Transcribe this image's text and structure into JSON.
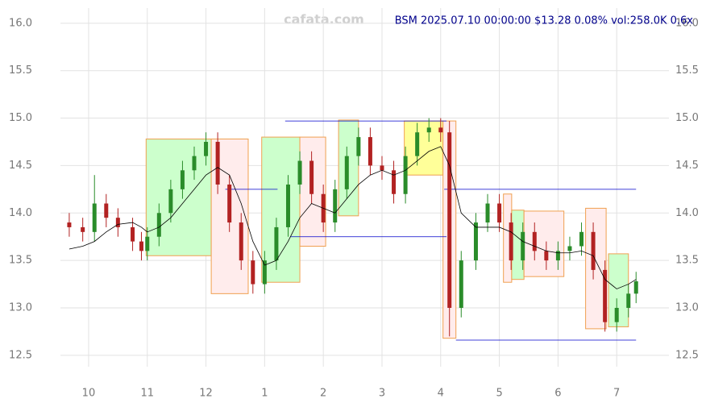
{
  "chart_data": {
    "type": "candlestick",
    "title": "BSM 2025.07.10 00:00:00 $13.28 0.08% vol:258.0K 0.6x",
    "watermark": "cafata.com",
    "x": [
      9.67,
      9.9,
      10.1,
      10.3,
      10.5,
      10.75,
      10.9,
      11.0,
      11.2,
      11.4,
      11.6,
      11.8,
      12.0,
      12.2,
      12.4,
      12.6,
      12.8,
      13.0,
      13.2,
      13.4,
      13.6,
      13.8,
      14.0,
      14.2,
      14.4,
      14.6,
      14.8,
      15.0,
      15.2,
      15.4,
      15.6,
      15.8,
      16.0,
      16.15,
      16.35,
      16.6,
      16.8,
      17.0,
      17.2,
      17.4,
      17.6,
      17.8,
      18.0,
      18.2,
      18.4,
      18.6,
      18.8,
      19.0,
      19.2,
      19.33
    ],
    "open": [
      13.9,
      13.85,
      13.8,
      14.1,
      13.95,
      13.85,
      13.7,
      13.6,
      13.75,
      14.0,
      14.25,
      14.45,
      14.6,
      14.75,
      14.3,
      13.9,
      13.5,
      13.25,
      13.5,
      13.85,
      14.3,
      14.55,
      14.2,
      13.9,
      14.25,
      14.6,
      14.8,
      14.5,
      14.45,
      14.2,
      14.6,
      14.85,
      14.9,
      14.85,
      13.0,
      13.5,
      13.9,
      14.1,
      13.9,
      13.5,
      13.8,
      13.6,
      13.5,
      13.6,
      13.65,
      13.8,
      13.4,
      12.85,
      13.0,
      13.15
    ],
    "high": [
      14.0,
      13.95,
      14.4,
      14.2,
      14.05,
      13.95,
      13.8,
      13.85,
      14.1,
      14.35,
      14.55,
      14.7,
      14.85,
      14.85,
      14.4,
      14.0,
      13.6,
      13.6,
      13.95,
      14.4,
      14.65,
      14.65,
      14.3,
      14.35,
      14.7,
      14.9,
      14.9,
      14.6,
      14.55,
      14.7,
      14.95,
      15.0,
      15.0,
      14.97,
      13.6,
      14.0,
      14.2,
      14.2,
      14.0,
      13.9,
      13.9,
      13.7,
      13.7,
      13.75,
      13.9,
      13.9,
      13.5,
      13.1,
      13.25,
      13.38
    ],
    "low": [
      13.75,
      13.7,
      13.7,
      13.85,
      13.75,
      13.6,
      13.5,
      13.5,
      13.65,
      13.9,
      14.15,
      14.35,
      14.5,
      14.2,
      13.8,
      13.4,
      13.15,
      13.15,
      13.4,
      13.75,
      14.2,
      14.1,
      13.8,
      13.8,
      14.15,
      14.5,
      14.4,
      14.35,
      14.1,
      14.1,
      14.5,
      14.75,
      14.75,
      12.7,
      12.9,
      13.4,
      13.8,
      13.8,
      13.4,
      13.4,
      13.5,
      13.4,
      13.4,
      13.5,
      13.55,
      13.3,
      12.75,
      12.75,
      12.9,
      13.05
    ],
    "close": [
      13.85,
      13.8,
      14.1,
      13.95,
      13.85,
      13.7,
      13.6,
      13.75,
      14.0,
      14.25,
      14.45,
      14.6,
      14.75,
      14.3,
      13.9,
      13.5,
      13.25,
      13.5,
      13.85,
      14.3,
      14.55,
      14.2,
      13.9,
      14.25,
      14.6,
      14.8,
      14.5,
      14.45,
      14.2,
      14.6,
      14.85,
      14.9,
      14.85,
      13.0,
      13.5,
      13.9,
      14.1,
      13.9,
      13.5,
      13.8,
      13.6,
      13.5,
      13.6,
      13.65,
      13.8,
      13.4,
      12.85,
      13.0,
      13.15,
      13.28
    ],
    "up_color": "#2a8c2a",
    "down_color": "#b22222",
    "ma": {
      "color": "#000000",
      "values": [
        13.62,
        13.65,
        13.7,
        13.8,
        13.88,
        13.9,
        13.85,
        13.8,
        13.85,
        13.95,
        14.1,
        14.25,
        14.4,
        14.48,
        14.4,
        14.1,
        13.7,
        13.45,
        13.5,
        13.7,
        13.95,
        14.1,
        14.05,
        14.0,
        14.15,
        14.3,
        14.4,
        14.45,
        14.4,
        14.45,
        14.55,
        14.65,
        14.7,
        14.5,
        14.0,
        13.85,
        13.85,
        13.85,
        13.8,
        13.7,
        13.65,
        13.6,
        13.58,
        13.58,
        13.6,
        13.55,
        13.3,
        13.2,
        13.25,
        13.3
      ]
    },
    "zones": [
      {
        "x0": 10.98,
        "x1": 12.09,
        "y0": 13.55,
        "y1": 14.78,
        "color": "#ccffcc"
      },
      {
        "x0": 12.09,
        "x1": 12.72,
        "y0": 13.15,
        "y1": 14.78,
        "color": "#ffecec"
      },
      {
        "x0": 12.95,
        "x1": 13.6,
        "y0": 13.27,
        "y1": 14.8,
        "color": "#ccffcc"
      },
      {
        "x0": 13.6,
        "x1": 14.04,
        "y0": 13.65,
        "y1": 14.8,
        "color": "#ffecec"
      },
      {
        "x0": 14.26,
        "x1": 14.6,
        "y0": 13.97,
        "y1": 14.98,
        "color": "#ccffcc"
      },
      {
        "x0": 15.38,
        "x1": 16.04,
        "y0": 14.4,
        "y1": 14.97,
        "color": "#ffff99"
      },
      {
        "x0": 16.04,
        "x1": 16.26,
        "y0": 12.68,
        "y1": 14.97,
        "color": "#ffecec"
      },
      {
        "x0": 17.07,
        "x1": 17.21,
        "y0": 13.27,
        "y1": 14.2,
        "color": "#ffecec"
      },
      {
        "x0": 17.21,
        "x1": 17.42,
        "y0": 13.3,
        "y1": 14.03,
        "color": "#ccffcc"
      },
      {
        "x0": 17.42,
        "x1": 18.1,
        "y0": 13.33,
        "y1": 14.02,
        "color": "#ffecec"
      },
      {
        "x0": 18.47,
        "x1": 18.82,
        "y0": 12.78,
        "y1": 14.05,
        "color": "#ffecec"
      },
      {
        "x0": 18.86,
        "x1": 19.2,
        "y0": 12.8,
        "y1": 13.57,
        "color": "#ccffcc"
      }
    ],
    "zone_border": "#f0a050",
    "levels": [
      {
        "x0": 13.35,
        "x1": 16.1,
        "y": 14.97
      },
      {
        "x0": 12.33,
        "x1": 13.22,
        "y": 14.25
      },
      {
        "x0": 16.06,
        "x1": 19.33,
        "y": 14.25
      },
      {
        "x0": 13.44,
        "x1": 16.1,
        "y": 13.75
      },
      {
        "x0": 16.26,
        "x1": 19.33,
        "y": 12.66
      }
    ],
    "level_color": "#0000cc",
    "xlim": [
      9.52,
      19.89
    ],
    "ylim": [
      12.38,
      16.16
    ],
    "xticks": [
      {
        "value": 10,
        "label": "10"
      },
      {
        "value": 11,
        "label": "11"
      },
      {
        "value": 12,
        "label": "12"
      },
      {
        "value": 13,
        "label": "1"
      },
      {
        "value": 14,
        "label": "2"
      },
      {
        "value": 15,
        "label": "3"
      },
      {
        "value": 16,
        "label": "4"
      },
      {
        "value": 17,
        "label": "5"
      },
      {
        "value": 18,
        "label": "6"
      },
      {
        "value": 19,
        "label": "7"
      }
    ],
    "yticks": [
      12.5,
      {
        "value": 13,
        "label": "13.0"
      },
      13.5,
      {
        "value": 14,
        "label": "14.0"
      },
      14.5,
      {
        "value": 15,
        "label": "15.0"
      },
      15.5,
      {
        "value": 16,
        "label": "16.0"
      }
    ],
    "grid": true
  }
}
